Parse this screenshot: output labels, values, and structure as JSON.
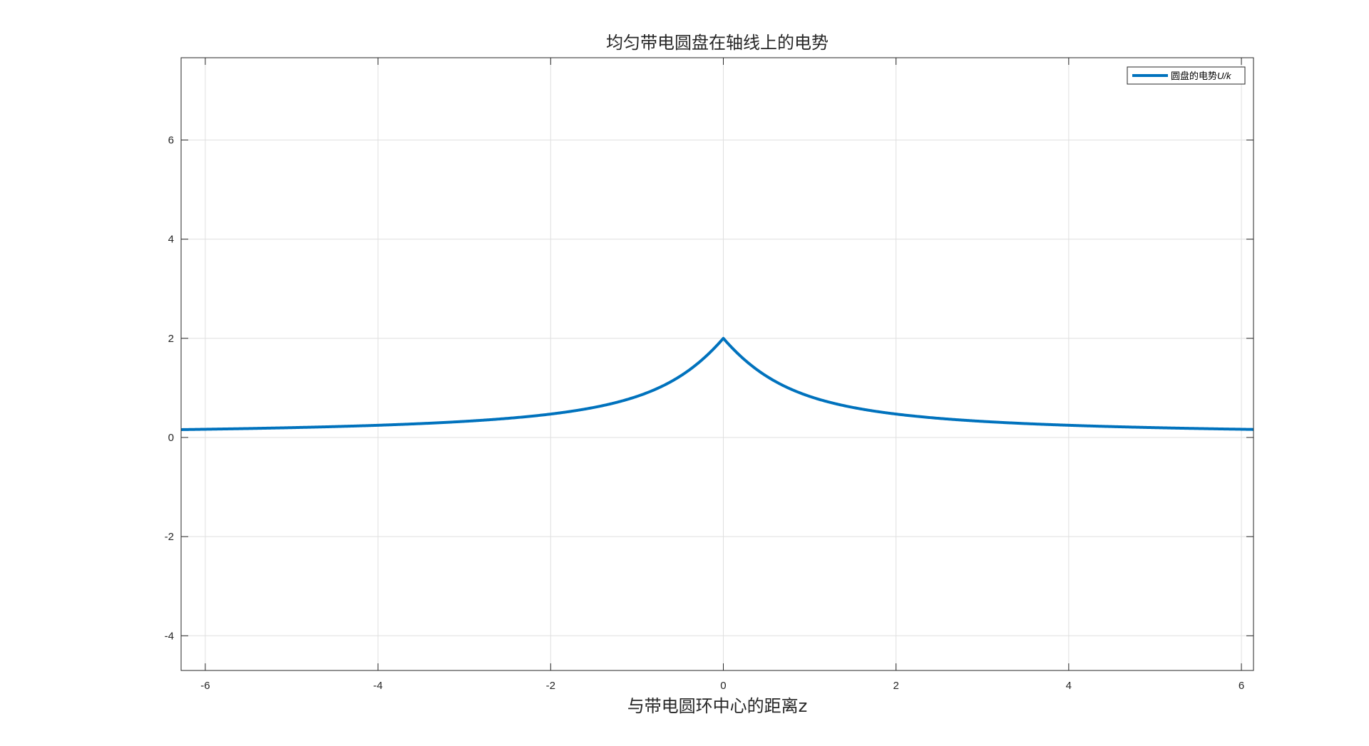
{
  "chart_data": {
    "type": "line",
    "title": "均匀带电圆盘在轴线上的电势",
    "xlabel": "与带电圆环中心的距离z",
    "ylabel": "",
    "xlim": [
      -6.28,
      6.14
    ],
    "ylim": [
      -4.7,
      7.66
    ],
    "xticks": [
      -6,
      -4,
      -2,
      0,
      2,
      4,
      6
    ],
    "yticks": [
      -4,
      -2,
      0,
      2,
      4,
      6
    ],
    "xtick_labels": [
      "-6",
      "-4",
      "-2",
      "0",
      "2",
      "4",
      "6"
    ],
    "ytick_labels": [
      "-4",
      "-2",
      "0",
      "2",
      "4",
      "6"
    ],
    "grid": true,
    "legend": {
      "placement": "top-right",
      "label_prefix": "圆盘的电势",
      "label_symbol": "U/k"
    },
    "colors": {
      "line": "#0072bd",
      "axes": "#262626",
      "grid": "#dfdfdf"
    },
    "series": [
      {
        "name": "圆盘的电势U/k",
        "formula": "2*(sqrt(z^2+1)-|z|)",
        "x": [
          -6.28,
          -6,
          -5.5,
          -5,
          -4.5,
          -4,
          -3.5,
          -3,
          -2.5,
          -2,
          -1.75,
          -1.5,
          -1.25,
          -1,
          -0.9,
          -0.8,
          -0.7,
          -0.6,
          -0.5,
          -0.4,
          -0.3,
          -0.2,
          -0.1,
          0,
          0.1,
          0.2,
          0.3,
          0.4,
          0.5,
          0.6,
          0.7,
          0.8,
          0.9,
          1,
          1.25,
          1.5,
          1.75,
          2,
          2.5,
          3,
          3.5,
          4,
          4.5,
          5,
          5.5,
          6,
          6.14
        ],
        "y": [
          0.158,
          0.165,
          0.18,
          0.198,
          0.22,
          0.246,
          0.28,
          0.325,
          0.385,
          0.472,
          0.532,
          0.606,
          0.702,
          0.828,
          0.89,
          0.961,
          1.041,
          1.132,
          1.236,
          1.354,
          1.488,
          1.64,
          1.81,
          2.0,
          1.81,
          1.64,
          1.488,
          1.354,
          1.236,
          1.132,
          1.041,
          0.961,
          0.89,
          0.828,
          0.702,
          0.606,
          0.532,
          0.472,
          0.385,
          0.325,
          0.28,
          0.246,
          0.22,
          0.198,
          0.18,
          0.165,
          0.161
        ]
      }
    ]
  }
}
